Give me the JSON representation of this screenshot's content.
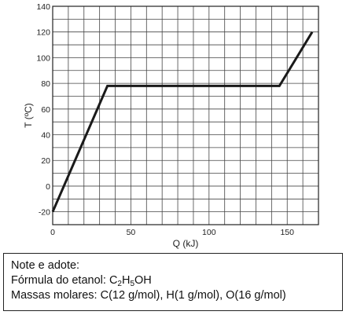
{
  "chart_data": {
    "type": "line",
    "xlabel": "Q (kJ)",
    "ylabel": "T (ºC)",
    "xlim": [
      0,
      170
    ],
    "ylim": [
      -30,
      140
    ],
    "xticks": [
      0,
      50,
      100,
      150
    ],
    "yticks": [
      -20,
      0,
      20,
      40,
      60,
      80,
      100,
      120,
      140
    ],
    "x_minor_step": 10,
    "y_minor_step": 10,
    "grid": true,
    "series": [
      {
        "x": [
          0,
          35,
          145,
          166
        ],
        "y": [
          -20,
          78,
          78,
          120
        ],
        "color": "#1a1a1a"
      }
    ]
  },
  "note": {
    "title": "Note e adote:",
    "formula_prefix": "Fórmula do etanol: ",
    "formula_parts": [
      {
        "text": "C",
        "sub": false
      },
      {
        "text": "2",
        "sub": true
      },
      {
        "text": "H",
        "sub": false
      },
      {
        "text": "5",
        "sub": true
      },
      {
        "text": "OH",
        "sub": false
      }
    ],
    "masses": "Massas molares: C(12 g/mol), H(1 g/mol), O(16 g/mol)"
  }
}
